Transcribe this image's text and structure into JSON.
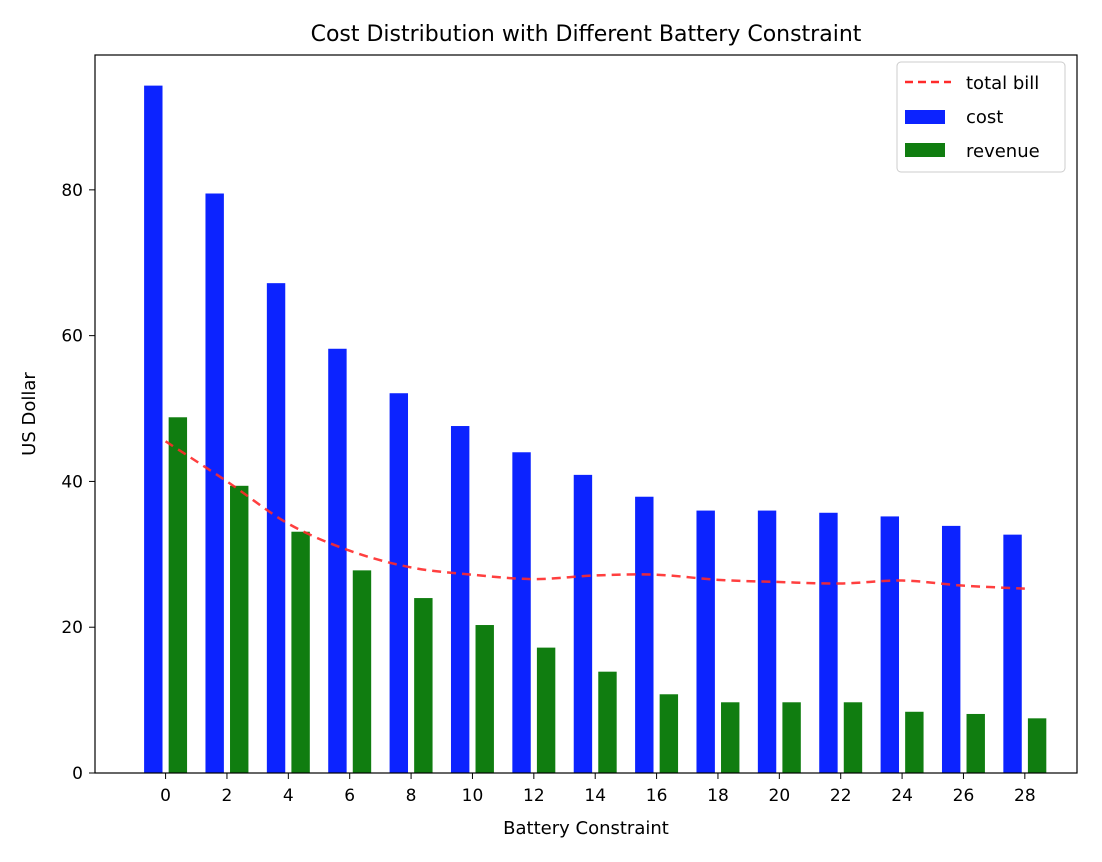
{
  "chart_data": {
    "type": "bar",
    "title": "Cost Distribution with Different Battery Constraint",
    "xlabel": "Battery Constraint",
    "ylabel": "US Dollar",
    "x": [
      0,
      2,
      4,
      6,
      8,
      10,
      12,
      14,
      16,
      18,
      20,
      22,
      24,
      26,
      28
    ],
    "x_ticks": [
      "0",
      "2",
      "4",
      "6",
      "8",
      "10",
      "12",
      "14",
      "16",
      "18",
      "20",
      "22",
      "24",
      "26",
      "28"
    ],
    "y_ticks": [
      "0",
      "20",
      "40",
      "60",
      "80"
    ],
    "xlim": [
      -2.3,
      29.7
    ],
    "ylim": [
      0,
      98.5
    ],
    "grid": false,
    "legend_position": "top-right",
    "series": [
      {
        "name": "total bill",
        "type": "line",
        "style": "dashed",
        "color": "#ff2a2a",
        "values": [
          45.5,
          40.0,
          34.2,
          30.5,
          28.2,
          27.2,
          26.6,
          27.1,
          27.2,
          26.5,
          26.2,
          26.0,
          26.4,
          25.7,
          25.3
        ]
      },
      {
        "name": "cost",
        "type": "bar",
        "color": "#0c23ff",
        "values": [
          94.3,
          79.5,
          67.2,
          58.2,
          52.1,
          47.6,
          44.0,
          40.9,
          37.9,
          36.0,
          36.0,
          35.7,
          35.2,
          33.9,
          32.7
        ]
      },
      {
        "name": "revenue",
        "type": "bar",
        "color": "#107d10",
        "values": [
          48.8,
          39.4,
          33.1,
          27.8,
          24.0,
          20.3,
          17.2,
          13.9,
          10.8,
          9.7,
          9.7,
          9.7,
          8.4,
          8.1,
          7.5
        ]
      }
    ]
  }
}
